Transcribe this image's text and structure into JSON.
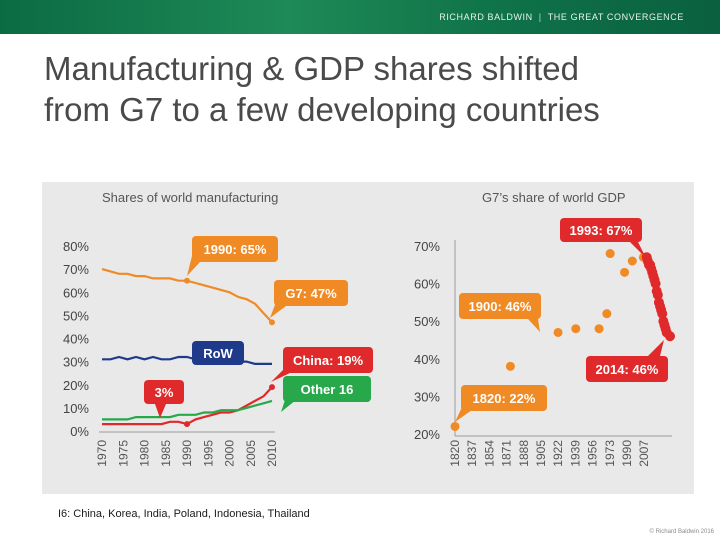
{
  "header": {
    "brand_name": "RICHARD BALDWIN",
    "brand_separator": "|",
    "brand_subtitle": "THE GREAT CONVERGENCE"
  },
  "slide": {
    "title_line1": "Manufacturing & GDP shares shifted",
    "title_line2": "from G7 to a few developing countries"
  },
  "footnote": "I6: China, Korea, India, Poland, Indonesia, Thailand",
  "copyright": "© Richard Baldwin 2016",
  "colors": {
    "header_green": "#137a4d",
    "orange": "#f08a24",
    "navy": "#1f3a8a",
    "red": "#e0292b",
    "green": "#27a84a"
  },
  "chart_data": [
    {
      "type": "line",
      "title": "Shares of world manufacturing",
      "ylim": [
        0,
        80
      ],
      "y_ticks": [
        "0%",
        "10%",
        "20%",
        "30%",
        "40%",
        "50%",
        "60%",
        "70%",
        "80%"
      ],
      "x_ticks": [
        "1970",
        "1975",
        "1980",
        "1985",
        "1990",
        "1995",
        "2000",
        "2005",
        "2010"
      ],
      "series": [
        {
          "x": [
            1970,
            1972,
            1974,
            1976,
            1978,
            1980,
            1982,
            1984,
            1986,
            1988,
            1990,
            1992,
            1994,
            1996,
            1998,
            2000,
            2002,
            2004,
            2006,
            2008,
            2010
          ],
          "values": [
            70,
            69,
            68,
            68,
            67,
            67,
            66,
            66,
            66,
            65,
            65,
            64,
            63,
            62,
            61,
            60,
            58,
            57,
            55,
            51,
            47
          ]
        },
        {
          "x": [
            1970,
            1972,
            1974,
            1976,
            1978,
            1980,
            1982,
            1984,
            1986,
            1988,
            1990,
            1992,
            1994,
            1996,
            1998,
            2000,
            2002,
            2004,
            2006,
            2008,
            2010
          ],
          "values": [
            31,
            31,
            32,
            31,
            32,
            31,
            32,
            31,
            31,
            32,
            32,
            31,
            31,
            31,
            30,
            31,
            30,
            30,
            29,
            29,
            29
          ]
        },
        {
          "x": [
            1970,
            1972,
            1974,
            1976,
            1978,
            1980,
            1982,
            1984,
            1986,
            1988,
            1990,
            1992,
            1994,
            1996,
            1998,
            2000,
            2002,
            2004,
            2006,
            2008,
            2010
          ],
          "values": [
            3,
            3,
            3,
            3,
            3,
            3,
            3,
            3,
            4,
            4,
            3,
            5,
            6,
            7,
            8,
            8,
            9,
            11,
            13,
            15,
            19
          ]
        },
        {
          "x": [
            1970,
            1972,
            1974,
            1976,
            1978,
            1980,
            1982,
            1984,
            1986,
            1988,
            1990,
            1992,
            1994,
            1996,
            1998,
            2000,
            2002,
            2004,
            2006,
            2008,
            2010
          ],
          "values": [
            5,
            5,
            5,
            5,
            6,
            6,
            6,
            6,
            6,
            7,
            7,
            7,
            8,
            8,
            9,
            9,
            9,
            10,
            11,
            12,
            13
          ]
        }
      ],
      "annotations": [
        {
          "text": "1990: 65%"
        },
        {
          "text": "G7: 47%"
        },
        {
          "text": "RoW"
        },
        {
          "text": "China: 19%"
        },
        {
          "text": "Other 16"
        },
        {
          "text": "3%"
        }
      ]
    },
    {
      "type": "scatter",
      "title": "G7’s share of world GDP",
      "ylim": [
        20,
        70
      ],
      "y_ticks": [
        "20%",
        "30%",
        "40%",
        "50%",
        "60%",
        "70%"
      ],
      "x_ticks": [
        "1820",
        "1837",
        "1854",
        "1871",
        "1888",
        "1905",
        "1922",
        "1939",
        "1956",
        "1973",
        "1990",
        "2007"
      ],
      "points": [
        {
          "x": 1820,
          "y": 22
        },
        {
          "x": 1870,
          "y": 38
        },
        {
          "x": 1913,
          "y": 47
        },
        {
          "x": 1929,
          "y": 48
        },
        {
          "x": 1950,
          "y": 48
        },
        {
          "x": 1957,
          "y": 52
        },
        {
          "x": 1960,
          "y": 68
        },
        {
          "x": 1973,
          "y": 63
        },
        {
          "x": 1980,
          "y": 66
        },
        {
          "x": 1990,
          "y": 67
        }
      ],
      "highlight_points": [
        {
          "x": 1993,
          "y": 67
        },
        {
          "x": 1994,
          "y": 66
        },
        {
          "x": 1995,
          "y": 65
        },
        {
          "x": 1996,
          "y": 65
        },
        {
          "x": 1997,
          "y": 64
        },
        {
          "x": 1998,
          "y": 63
        },
        {
          "x": 1999,
          "y": 62
        },
        {
          "x": 2000,
          "y": 61
        },
        {
          "x": 2001,
          "y": 60
        },
        {
          "x": 2002,
          "y": 58
        },
        {
          "x": 2003,
          "y": 57
        },
        {
          "x": 2004,
          "y": 55
        },
        {
          "x": 2005,
          "y": 54
        },
        {
          "x": 2006,
          "y": 53
        },
        {
          "x": 2007,
          "y": 52
        },
        {
          "x": 2008,
          "y": 50
        },
        {
          "x": 2009,
          "y": 49
        },
        {
          "x": 2010,
          "y": 48
        },
        {
          "x": 2011,
          "y": 47
        },
        {
          "x": 2014,
          "y": 46
        }
      ],
      "annotations": [
        {
          "text": "1993: 67%"
        },
        {
          "text": "1900: 46%"
        },
        {
          "text": "2014: 46%"
        },
        {
          "text": "1820: 22%"
        }
      ]
    }
  ]
}
